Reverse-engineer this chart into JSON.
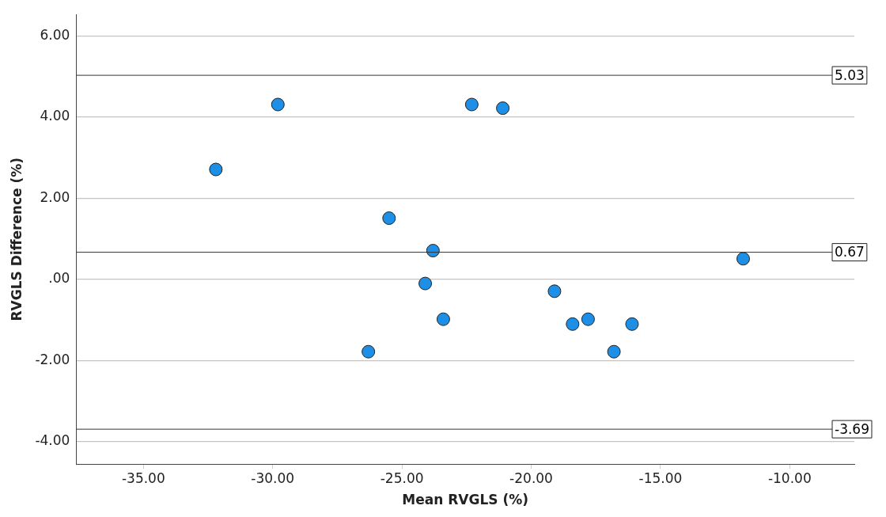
{
  "chart_data": {
    "type": "scatter",
    "xlabel": "Mean RVGLS (%)",
    "ylabel": "RVGLS Difference (%)",
    "x": [
      -32.2,
      -29.8,
      -26.3,
      -25.5,
      -24.1,
      -23.8,
      -23.4,
      -22.3,
      -21.1,
      -19.1,
      -18.4,
      -17.8,
      -16.8,
      -16.1,
      -11.8
    ],
    "series": [
      {
        "color": "#1e8fe6",
        "values": [
          2.71,
          4.31,
          -1.78,
          1.51,
          -0.1,
          0.71,
          -0.98,
          4.31,
          4.22,
          -0.29,
          -1.1,
          -0.98,
          -1.78,
          -1.1,
          0.51
        ]
      }
    ],
    "xlim": [
      -37.6,
      -7.5
    ],
    "ylim": [
      -4.55,
      6.53
    ],
    "xticks": [
      {
        "value": -35,
        "label": "-35.00"
      },
      {
        "value": -30,
        "label": "-30.00"
      },
      {
        "value": -25,
        "label": "-25.00"
      },
      {
        "value": -20,
        "label": "-20.00"
      },
      {
        "value": -15,
        "label": "-15.00"
      },
      {
        "value": -10,
        "label": "-10.00"
      }
    ],
    "yticks": [
      {
        "value": -4,
        "label": "-4.00"
      },
      {
        "value": -2,
        "label": "-2.00"
      },
      {
        "value": 0,
        "label": ".00"
      },
      {
        "value": 2,
        "label": "2.00"
      },
      {
        "value": 4,
        "label": "4.00"
      },
      {
        "value": 6,
        "label": "6.00"
      }
    ],
    "ref_lines": [
      {
        "axis": "y",
        "value": 5.03,
        "label": "5.03",
        "color": "#333333"
      },
      {
        "axis": "y",
        "value": 0.67,
        "label": "0.67",
        "color": "#333333"
      },
      {
        "axis": "y",
        "value": -3.69,
        "label": "-3.69",
        "color": "#333333"
      }
    ],
    "grid": "y",
    "legend": false,
    "marker": "circle"
  }
}
